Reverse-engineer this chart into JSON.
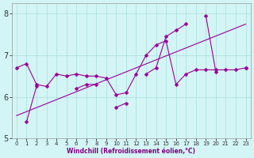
{
  "xlabel": "Windchill (Refroidissement éolien,°C)",
  "x": [
    0,
    1,
    2,
    3,
    4,
    5,
    6,
    7,
    8,
    9,
    10,
    11,
    12,
    13,
    14,
    15,
    16,
    17,
    18,
    19,
    20,
    21,
    22,
    23
  ],
  "line1_y": [
    6.7,
    6.8,
    6.3,
    6.25,
    6.55,
    6.5,
    6.55,
    6.5,
    6.5,
    6.45,
    6.05,
    6.1,
    6.55,
    7.0,
    7.25,
    7.35,
    6.3,
    6.55,
    6.65,
    6.65,
    6.65,
    6.65,
    6.65,
    6.7
  ],
  "line2_y": [
    null,
    5.4,
    6.25,
    null,
    null,
    null,
    6.2,
    6.3,
    6.3,
    null,
    5.75,
    5.85,
    null,
    6.55,
    6.7,
    7.45,
    7.6,
    7.75,
    null,
    7.95,
    6.6,
    null,
    null,
    6.7
  ],
  "trend_x": [
    0,
    23
  ],
  "trend_y": [
    5.55,
    7.75
  ],
  "line_color": "#990099",
  "bg_color": "#d4f5f5",
  "grid_color": "#aadddd",
  "ylim": [
    5.0,
    8.25
  ],
  "xlim": [
    -0.5,
    23.5
  ],
  "yticks": [
    5,
    6,
    7,
    8
  ],
  "xticks": [
    0,
    1,
    2,
    3,
    4,
    5,
    6,
    7,
    8,
    9,
    10,
    11,
    12,
    13,
    14,
    15,
    16,
    17,
    18,
    19,
    20,
    21,
    22,
    23
  ],
  "markersize": 2.5,
  "linewidth": 0.8,
  "figsize": [
    3.2,
    2.0
  ],
  "dpi": 100
}
